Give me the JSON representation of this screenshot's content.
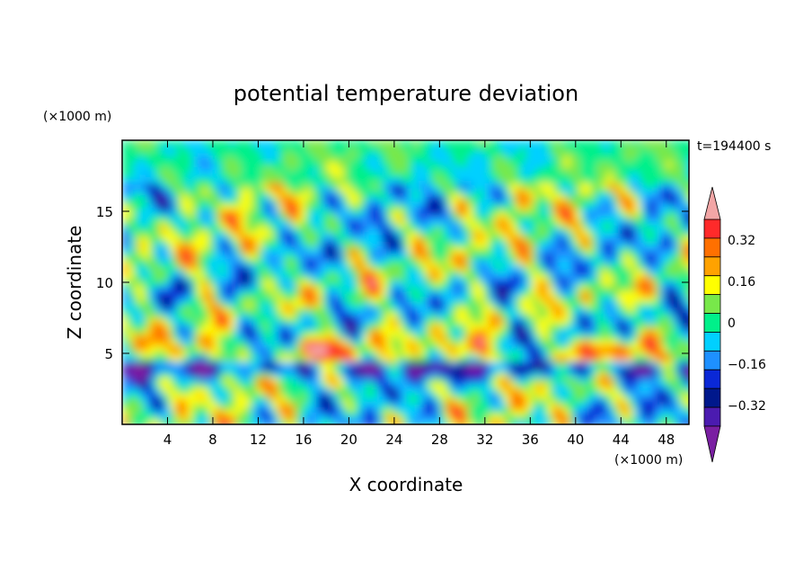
{
  "chart_data": {
    "type": "heatmap",
    "title": "potential temperature deviation",
    "xlabel": "X coordinate",
    "ylabel": "Z coordinate",
    "x_units": "(×1000 m)",
    "y_units": "(×1000 m)",
    "time_label": "t=194400 s",
    "xlim": [
      0,
      50
    ],
    "ylim": [
      0,
      20
    ],
    "x_ticks": [
      4,
      8,
      12,
      16,
      20,
      24,
      28,
      32,
      36,
      40,
      44,
      48
    ],
    "y_ticks": [
      5,
      10,
      15
    ],
    "colorbar": {
      "levels": [
        -0.48,
        -0.4,
        -0.32,
        -0.24,
        -0.16,
        -0.08,
        0,
        0.08,
        0.16,
        0.24,
        0.32,
        0.4,
        0.48
      ],
      "labels": [
        "0.32",
        "0.16",
        "0",
        "−0.16",
        "−0.32"
      ],
      "label_values": [
        0.32,
        0.16,
        0,
        -0.16,
        -0.32
      ],
      "colors": [
        "#7a1fa2",
        "#4b1bb0",
        "#00188c",
        "#0a28d6",
        "#1e90ff",
        "#00d0ff",
        "#00f08a",
        "#78e84a",
        "#ffff00",
        "#ffa200",
        "#ff7000",
        "#ff2a2a",
        "#f2a6a6"
      ],
      "extend": "both"
    },
    "field_description": "2-D potential temperature deviation field, z from 0 to 20 km, x from 0 to 50 km"
  }
}
